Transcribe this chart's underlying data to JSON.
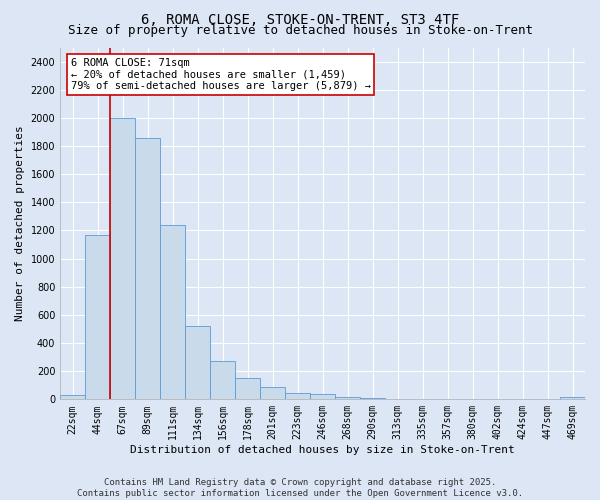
{
  "title": "6, ROMA CLOSE, STOKE-ON-TRENT, ST3 4TF",
  "subtitle": "Size of property relative to detached houses in Stoke-on-Trent",
  "xlabel": "Distribution of detached houses by size in Stoke-on-Trent",
  "ylabel": "Number of detached properties",
  "bar_labels": [
    "22sqm",
    "44sqm",
    "67sqm",
    "89sqm",
    "111sqm",
    "134sqm",
    "156sqm",
    "178sqm",
    "201sqm",
    "223sqm",
    "246sqm",
    "268sqm",
    "290sqm",
    "313sqm",
    "335sqm",
    "357sqm",
    "380sqm",
    "402sqm",
    "424sqm",
    "447sqm",
    "469sqm"
  ],
  "bar_values": [
    30,
    1170,
    2000,
    1860,
    1240,
    520,
    275,
    155,
    90,
    45,
    38,
    18,
    12,
    5,
    3,
    2,
    1,
    1,
    1,
    1,
    18
  ],
  "bar_color": "#c9daea",
  "bar_edge_color": "#5b9bd5",
  "background_color": "#dce6f5",
  "grid_color": "#ffffff",
  "vline_x": 1.5,
  "vline_color": "#cc0000",
  "annotation_text": "6 ROMA CLOSE: 71sqm\n← 20% of detached houses are smaller (1,459)\n79% of semi-detached houses are larger (5,879) →",
  "annotation_box_color": "#ffffff",
  "annotation_box_edge_color": "#cc0000",
  "ylim": [
    0,
    2500
  ],
  "yticks": [
    0,
    200,
    400,
    600,
    800,
    1000,
    1200,
    1400,
    1600,
    1800,
    2000,
    2200,
    2400
  ],
  "footer_line1": "Contains HM Land Registry data © Crown copyright and database right 2025.",
  "footer_line2": "Contains public sector information licensed under the Open Government Licence v3.0.",
  "title_fontsize": 10,
  "subtitle_fontsize": 9,
  "axis_label_fontsize": 8,
  "tick_fontsize": 7,
  "annotation_fontsize": 7.5,
  "footer_fontsize": 6.5
}
